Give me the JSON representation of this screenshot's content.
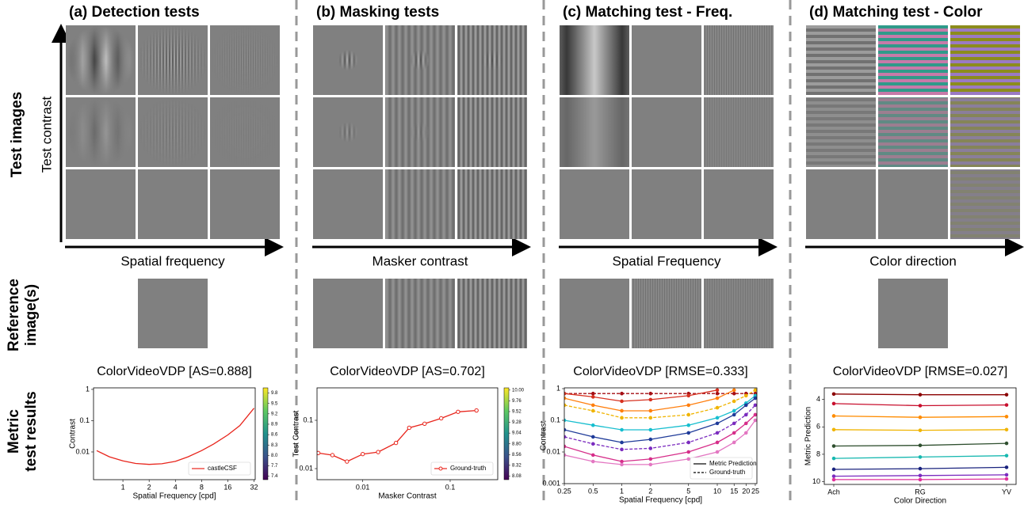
{
  "panels": [
    {
      "title": "(a) Detection tests",
      "x_label": "Spatial frequency",
      "y_label": "Test contrast"
    },
    {
      "title": "(b) Masking tests",
      "x_label": "Masker contrast"
    },
    {
      "title": "(c) Matching test - Freq.",
      "x_label": "Spatial Frequency"
    },
    {
      "title": "(d) Matching test - Color",
      "x_label": "Color direction"
    }
  ],
  "row_labels": {
    "test_images": "Test images",
    "reference_images": [
      "Reference",
      "image(s)"
    ],
    "metric_results": [
      "Metric",
      "test results"
    ]
  },
  "chart_data": [
    {
      "type": "line",
      "title": "ColorVideoVDP [AS=0.888]",
      "x_label": "Spatial Frequency [cpd]",
      "y_label": "Contrast",
      "x_log": true,
      "y_log": true,
      "xlim": [
        0.46,
        33
      ],
      "ylim": [
        0.0013,
        1.12
      ],
      "xticks": [
        1,
        2,
        4,
        8,
        16,
        32
      ],
      "yticks": [
        0.01,
        0.1,
        1
      ],
      "x": [
        0.5,
        0.7,
        1,
        1.4,
        2,
        2.8,
        4,
        5.6,
        8,
        11,
        16,
        22,
        32
      ],
      "series": [
        {
          "name": "castleCSF",
          "color": "#e8251c",
          "values": [
            0.011,
            0.007,
            0.0052,
            0.0043,
            0.004,
            0.0042,
            0.005,
            0.007,
            0.011,
            0.018,
            0.035,
            0.07,
            0.25
          ]
        }
      ],
      "legend": "lower right",
      "colorbar": {
        "clim": [
          7.3,
          9.95
        ],
        "ticks": [
          9.8,
          9.5,
          9.2,
          8.9,
          8.6,
          8.3,
          {
            "value": 8,
            "label": "8.0"
          },
          7.7,
          7.4
        ]
      }
    },
    {
      "type": "line",
      "title": "ColorVideoVDP [AS=0.702]",
      "x_label": "Masker Contrast",
      "y_label": "Test Contrast",
      "x_log": true,
      "y_log": true,
      "xlim": [
        0.003,
        0.35
      ],
      "ylim": [
        0.0059,
        0.47
      ],
      "xticks": [
        0.01,
        0.1
      ],
      "yticks": [
        0.01,
        0.1
      ],
      "x": [
        0.0031,
        0.0045,
        0.0066,
        0.01,
        0.015,
        0.024,
        0.034,
        0.051,
        0.079,
        0.123,
        0.2
      ],
      "series": [
        {
          "name": "Ground-truth",
          "color": "#e8251c",
          "marker": "open-circle",
          "values": [
            0.021,
            0.019,
            0.014,
            0.02,
            0.022,
            0.034,
            0.07,
            0.085,
            0.11,
            0.15,
            0.16
          ]
        }
      ],
      "legend": "lower right",
      "colorbar": {
        "clim": [
          8.0,
          10.05
        ],
        "ticks": [
          {
            "value": 10,
            "label": "10.00"
          },
          9.76,
          9.52,
          9.28,
          9.04,
          {
            "value": 8.8,
            "label": "8.80"
          },
          8.56,
          8.32,
          8.08
        ]
      }
    },
    {
      "type": "line",
      "title": "ColorVideoVDP [RMSE=0.333]",
      "x_label": "Spatial Frequency [cpd]",
      "y_label": "Contrast",
      "x_log": true,
      "y_log": true,
      "xlim": [
        0.25,
        26
      ],
      "ylim": [
        0.001,
        1.06
      ],
      "xticks": [
        0.25,
        0.5,
        1,
        2,
        5,
        10,
        15,
        20,
        25
      ],
      "yticks": [
        0.001,
        0.01,
        0.1,
        1
      ],
      "x": [
        0.25,
        0.5,
        1,
        2,
        5,
        10,
        15,
        20,
        25
      ],
      "series": [
        {
          "color": "#a50f15",
          "dashed": true,
          "values": [
            0.7,
            0.7,
            0.7,
            0.7,
            0.7,
            0.7,
            0.7,
            0.7,
            0.7
          ]
        },
        {
          "color": "#d7301f",
          "values": [
            0.7,
            0.55,
            0.4,
            0.45,
            0.6,
            0.9,
            null,
            null,
            null
          ]
        },
        {
          "color": "#ff7f0e",
          "values": [
            0.5,
            0.3,
            0.2,
            0.2,
            0.3,
            0.5,
            0.9,
            null,
            null
          ]
        },
        {
          "color": "#f0b400",
          "dashed": true,
          "values": [
            0.3,
            0.2,
            0.12,
            0.12,
            0.15,
            0.25,
            0.4,
            0.6,
            0.9
          ]
        },
        {
          "color": "#17becf",
          "values": [
            0.1,
            0.07,
            0.05,
            0.05,
            0.07,
            0.12,
            0.2,
            0.35,
            0.6
          ]
        },
        {
          "color": "#1f3b99",
          "values": [
            0.05,
            0.03,
            0.02,
            0.025,
            0.04,
            0.08,
            0.15,
            0.3,
            0.5
          ]
        },
        {
          "color": "#7b2cbf",
          "dashed": true,
          "values": [
            0.03,
            0.018,
            0.012,
            0.013,
            0.02,
            0.04,
            0.08,
            0.15,
            0.3
          ]
        },
        {
          "color": "#d62e8a",
          "values": [
            0.015,
            0.008,
            0.005,
            0.006,
            0.01,
            0.02,
            0.04,
            0.08,
            0.15
          ]
        },
        {
          "color": "#e377c2",
          "values": [
            0.008,
            0.005,
            0.004,
            0.004,
            0.006,
            0.01,
            0.02,
            0.04,
            0.1
          ]
        }
      ],
      "legend_labels": [
        "Metric Prediction",
        "Ground-truth"
      ],
      "legend": "lower right"
    },
    {
      "type": "line",
      "title": "ColorVideoVDP [RMSE=0.027]",
      "x_label": "Color Direction",
      "y_label": "Metric Prediction",
      "categories": [
        "Ach",
        "RG",
        "YV"
      ],
      "ylim": [
        3.15,
        10.2
      ],
      "y_inverted": true,
      "yticks": [
        4,
        6,
        8,
        10
      ],
      "series": [
        {
          "color": "#8b0000",
          "values": [
            3.6,
            3.65,
            3.65
          ]
        },
        {
          "color": "#c8102e",
          "values": [
            4.3,
            4.45,
            4.4
          ]
        },
        {
          "color": "#ff8c00",
          "values": [
            5.2,
            5.3,
            5.25
          ]
        },
        {
          "color": "#f0b400",
          "values": [
            6.2,
            6.25,
            6.2
          ]
        },
        {
          "color": "#2f4f2f",
          "values": [
            7.4,
            7.35,
            7.2
          ]
        },
        {
          "color": "#17b8b0",
          "values": [
            8.3,
            8.2,
            8.1
          ]
        },
        {
          "color": "#1a237e",
          "values": [
            9.1,
            9.05,
            8.95
          ]
        },
        {
          "color": "#7b2cbf",
          "values": [
            9.6,
            9.55,
            9.5
          ]
        },
        {
          "color": "#e0309a",
          "values": [
            9.85,
            9.85,
            9.8
          ]
        }
      ]
    }
  ]
}
